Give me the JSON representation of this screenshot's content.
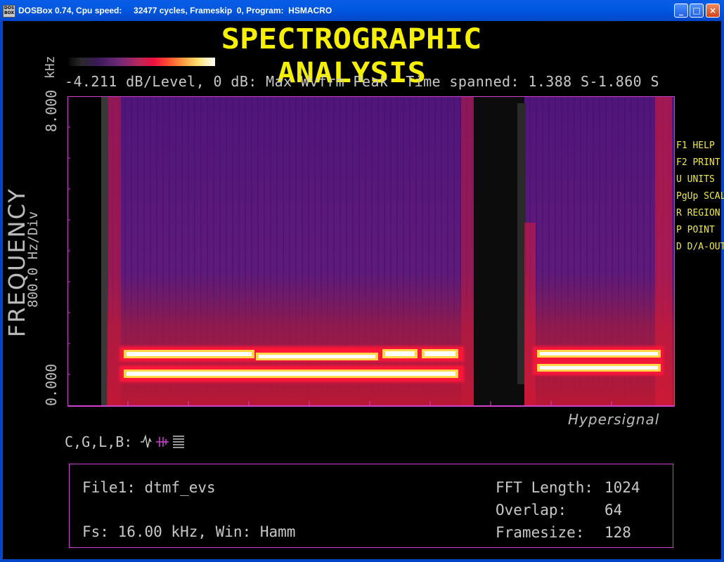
{
  "window": {
    "icon_text": "DOS BOX",
    "title": "DOSBox 0.74, Cpu speed:     32477 cycles, Frameskip  0, Program:  HSMACRO",
    "minimize_glyph": "_",
    "maximize_glyph": "□",
    "close_glyph": "×"
  },
  "app": {
    "title": "SPECTROGRAPHIC ANALYSIS",
    "info_line": "-4.211 dB/Level, 0 dB: Max Wvfrm Peak  Time spanned: 1.388 S-1.860 S",
    "y_axis": {
      "unit": "kHz",
      "max_label": "8.000",
      "min_label": "0.000",
      "div_label": "800.0 Hz/Div",
      "title": "FREQUENCY"
    },
    "brand": "Hypersignal",
    "function_keys": [
      {
        "label": "F1 HELP"
      },
      {
        "label": "F2 PRINT"
      },
      {
        "label": "U UNITS"
      },
      {
        "label": "PgUp SCALE"
      },
      {
        "label": "R REGION"
      },
      {
        "label": "P POINT"
      },
      {
        "label": "D D/A-OUT"
      }
    ],
    "cglb_label": "C,G,L,B:",
    "cglb_icons": [
      "waveform-icon",
      "cursor-icon",
      "grid-lines-icon"
    ],
    "panel": {
      "file": "File1: dtmf_evs",
      "fs": "Fs: 16.00 kHz, Win: Hamm",
      "fft_length_label": "FFT Length:",
      "fft_length_value": "1024",
      "overlap_label": "Overlap:",
      "overlap_value": "64",
      "framesize_label": "Framesize:",
      "framesize_value": "128"
    },
    "colors": {
      "title_yellow": "#f6f000",
      "fkey_yellow": "#f0e84a",
      "text_gray": "#c8c8c8",
      "axis_magenta": "#d040d0",
      "spectro_bg": "#581878",
      "tone_white": "#ffffff",
      "tone_yellow": "#ffe050",
      "tone_red": "#ff1838"
    }
  }
}
